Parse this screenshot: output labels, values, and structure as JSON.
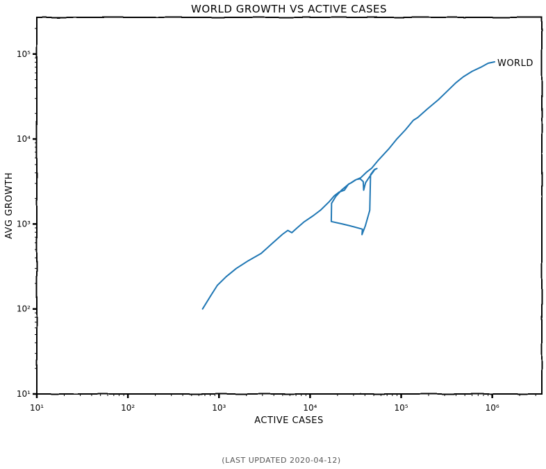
{
  "chart_data": {
    "type": "line",
    "title": "WORLD GROWTH VS ACTIVE CASES",
    "xlabel": "ACTIVE CASES",
    "ylabel": "AVG GROWTH",
    "x_scale": "log",
    "y_scale": "log",
    "xlim": [
      10,
      3500000
    ],
    "ylim": [
      10,
      270000
    ],
    "x_ticks": [
      {
        "value": 10,
        "label": "10¹"
      },
      {
        "value": 100,
        "label": "10²"
      },
      {
        "value": 1000,
        "label": "10³"
      },
      {
        "value": 10000,
        "label": "10⁴"
      },
      {
        "value": 100000,
        "label": "10⁵"
      },
      {
        "value": 1000000,
        "label": "10⁶"
      }
    ],
    "y_ticks": [
      {
        "value": 10,
        "label": "10¹"
      },
      {
        "value": 100,
        "label": "10²"
      },
      {
        "value": 1000,
        "label": "10³"
      },
      {
        "value": 10000,
        "label": "10⁴"
      },
      {
        "value": 100000,
        "label": "10⁵"
      }
    ],
    "grid": false,
    "legend": "none",
    "series": [
      {
        "name": "WORLD",
        "color": "#1f77b4",
        "points": [
          [
            660,
            100
          ],
          [
            800,
            140
          ],
          [
            960,
            190
          ],
          [
            1200,
            240
          ],
          [
            1550,
            300
          ],
          [
            2100,
            370
          ],
          [
            2900,
            450
          ],
          [
            3900,
            600
          ],
          [
            5000,
            760
          ],
          [
            5700,
            840
          ],
          [
            6300,
            790
          ],
          [
            7200,
            900
          ],
          [
            8600,
            1060
          ],
          [
            10800,
            1250
          ],
          [
            13000,
            1450
          ],
          [
            16200,
            1830
          ],
          [
            18500,
            2150
          ],
          [
            20900,
            2380
          ],
          [
            23800,
            2500
          ],
          [
            26400,
            2950
          ],
          [
            28300,
            3050
          ],
          [
            32400,
            3350
          ],
          [
            35500,
            3400
          ],
          [
            38300,
            3150
          ],
          [
            38700,
            2500
          ],
          [
            40600,
            3050
          ],
          [
            45000,
            3600
          ],
          [
            50000,
            4200
          ],
          [
            51200,
            4400
          ],
          [
            54200,
            4500
          ],
          [
            50100,
            4300
          ],
          [
            46100,
            3800
          ],
          [
            45200,
            1450
          ],
          [
            40400,
            950
          ],
          [
            37100,
            750
          ],
          [
            37500,
            870
          ],
          [
            27700,
            950
          ],
          [
            22700,
            1000
          ],
          [
            17100,
            1070
          ],
          [
            17200,
            1750
          ],
          [
            19100,
            2100
          ],
          [
            22100,
            2500
          ],
          [
            26100,
            2900
          ],
          [
            31500,
            3300
          ],
          [
            36000,
            3500
          ],
          [
            42000,
            4100
          ],
          [
            47600,
            4550
          ],
          [
            56700,
            5700
          ],
          [
            72800,
            7600
          ],
          [
            88900,
            9900
          ],
          [
            111000,
            12800
          ],
          [
            136000,
            16600
          ],
          [
            152000,
            17900
          ],
          [
            193000,
            22500
          ],
          [
            256000,
            29000
          ],
          [
            338000,
            38700
          ],
          [
            398000,
            45800
          ],
          [
            481000,
            54000
          ],
          [
            601000,
            62700
          ],
          [
            750000,
            70000
          ],
          [
            900000,
            78000
          ],
          [
            1060000,
            81000
          ]
        ],
        "end_label": "WORLD"
      }
    ]
  },
  "footer": "(LAST UPDATED 2020-04-12)"
}
